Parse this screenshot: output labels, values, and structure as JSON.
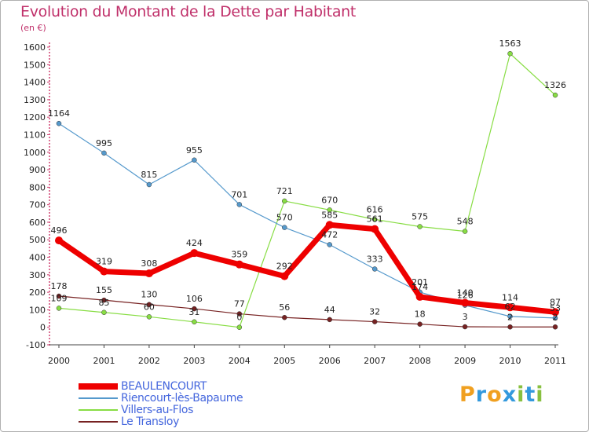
{
  "header": {
    "title": "Evolution du Montant de la Dette par Habitant",
    "unit": "(en €)"
  },
  "logo": {
    "text": "Proxiti",
    "letters": [
      {
        "ch": "P",
        "color": "#f0a020"
      },
      {
        "ch": "r",
        "color": "#3399dd"
      },
      {
        "ch": "o",
        "color": "#f0a020"
      },
      {
        "ch": "x",
        "color": "#3399dd"
      },
      {
        "ch": "i",
        "color": "#88c040"
      },
      {
        "ch": "t",
        "color": "#3399dd"
      },
      {
        "ch": "i",
        "color": "#88c040"
      }
    ]
  },
  "chart_data": {
    "type": "line",
    "title": "Evolution du Montant de la Dette par Habitant",
    "subtitle": "(en €)",
    "xlabel": "",
    "ylabel": "",
    "categories": [
      "2000",
      "2001",
      "2002",
      "2003",
      "2004",
      "2005",
      "2006",
      "2007",
      "2008",
      "2009",
      "2010",
      "2011"
    ],
    "y_ticks": [
      -100,
      0,
      100,
      200,
      300,
      400,
      500,
      600,
      700,
      800,
      900,
      1000,
      1100,
      1200,
      1300,
      1400,
      1500,
      1600
    ],
    "ylim": [
      -100,
      1600
    ],
    "grid": false,
    "legend_position": "bottom-left",
    "series": [
      {
        "name": "BEAULENCOURT",
        "color": "#ee0000",
        "values": [
          496,
          319,
          308,
          424,
          359,
          292,
          585,
          561,
          174,
          140,
          114,
          87
        ],
        "labels": [
          "496",
          "319",
          "308",
          "424",
          "359",
          "292",
          "585",
          "561",
          "174",
          "140",
          "114",
          "87"
        ]
      },
      {
        "name": "Riencourt-lès-Bapaume",
        "color": "#5599cc",
        "values": [
          1164,
          995,
          815,
          955,
          701,
          570,
          472,
          333,
          201,
          126,
          62,
          53
        ],
        "labels": [
          "1164",
          "995",
          "815",
          "955",
          "701",
          "570",
          "472",
          "333",
          "201",
          "126",
          "62",
          "53"
        ]
      },
      {
        "name": "Villers-au-Flos",
        "color": "#88dd44",
        "values": [
          109,
          85,
          60,
          31,
          0,
          721,
          670,
          616,
          575,
          548,
          1563,
          1326
        ],
        "labels": [
          "109",
          "85",
          "60",
          "31",
          "0",
          "721",
          "670",
          "616",
          "575",
          "548",
          "1563",
          "1326"
        ]
      },
      {
        "name": "Le Transloy",
        "color": "#772222",
        "values": [
          178,
          155,
          130,
          106,
          77,
          56,
          44,
          32,
          18,
          3,
          2,
          2
        ],
        "labels": [
          "178",
          "155",
          "130",
          "106",
          "77",
          "56",
          "44",
          "32",
          "18",
          "3",
          "2",
          "2"
        ]
      }
    ]
  }
}
